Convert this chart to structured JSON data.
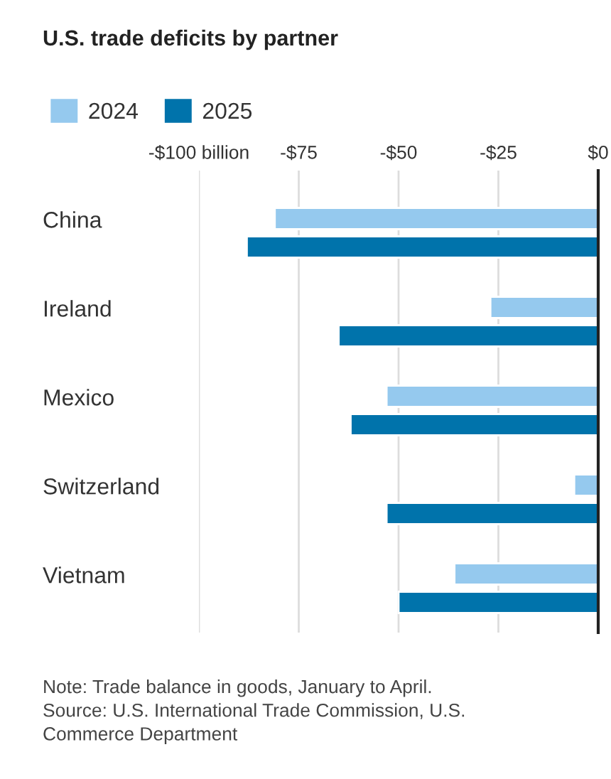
{
  "chart_data": {
    "type": "bar",
    "orientation": "horizontal",
    "title": "U.S. trade deficits by partner",
    "categories": [
      "China",
      "Ireland",
      "Mexico",
      "Switzerland",
      "Vietnam"
    ],
    "series": [
      {
        "name": "2024",
        "color": "#95c9ee",
        "values": [
          -81,
          -27,
          -53,
          -6,
          -36
        ]
      },
      {
        "name": "2025",
        "color": "#0073ab",
        "values": [
          -88,
          -65,
          -62,
          -53,
          -50
        ]
      }
    ],
    "xlim": [
      -100,
      0
    ],
    "xticks": [
      {
        "value": -100,
        "label": "-$100 billion"
      },
      {
        "value": -75,
        "label": "-$75"
      },
      {
        "value": -50,
        "label": "-$50"
      },
      {
        "value": -25,
        "label": "-$25"
      },
      {
        "value": 0,
        "label": "$0"
      }
    ],
    "grid": "x",
    "legend": "top left",
    "annotations": [
      "Note: Trade balance in goods, January to April.\nSource: U.S. International Trade Commission, U.S.\nCommerce Department"
    ]
  }
}
